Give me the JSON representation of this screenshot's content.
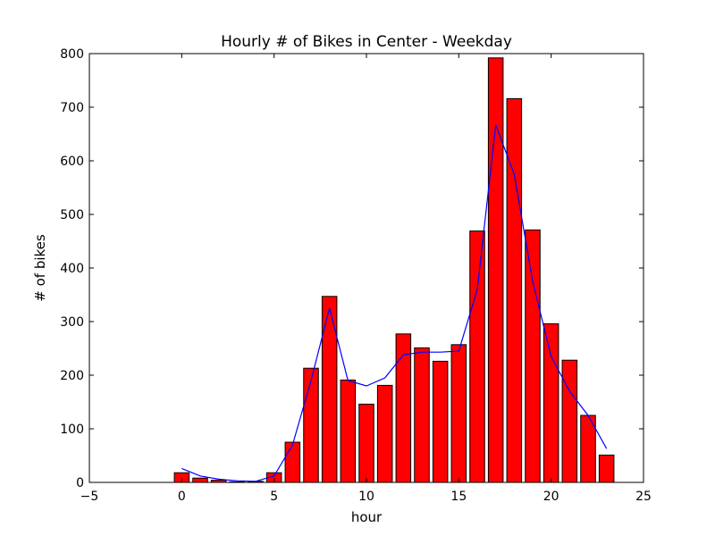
{
  "chart_data": {
    "type": "bar",
    "title": "Hourly # of Bikes in Center - Weekday",
    "xlabel": "hour",
    "ylabel": "# of bikes",
    "xlim": [
      -5,
      25
    ],
    "ylim": [
      0,
      800
    ],
    "xticks": [
      -5,
      0,
      5,
      10,
      15,
      20,
      25
    ],
    "yticks": [
      0,
      100,
      200,
      300,
      400,
      500,
      600,
      700,
      800
    ],
    "grid": false,
    "bar_color": "#ff0000",
    "line_color": "#0000ff",
    "x": [
      0,
      1,
      2,
      3,
      4,
      5,
      6,
      7,
      8,
      9,
      10,
      11,
      12,
      13,
      14,
      15,
      16,
      17,
      18,
      19,
      20,
      21,
      22,
      23
    ],
    "series": [
      {
        "type": "bar",
        "values": [
          18,
          8,
          4,
          1,
          2,
          18,
          75,
          213,
          347,
          191,
          146,
          181,
          277,
          251,
          226,
          257,
          469,
          792,
          716,
          471,
          296,
          228,
          125,
          51
        ]
      },
      {
        "type": "line",
        "values": [
          26,
          12,
          6,
          3,
          2,
          12,
          70,
          190,
          325,
          190,
          180,
          195,
          238,
          243,
          243,
          245,
          360,
          667,
          575,
          375,
          235,
          170,
          125,
          63
        ]
      }
    ]
  }
}
